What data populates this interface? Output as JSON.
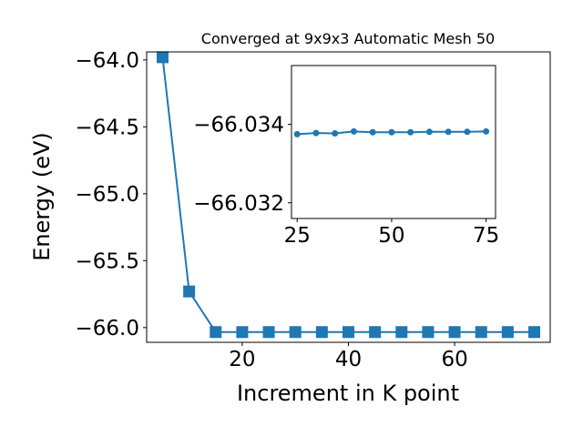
{
  "chart_data": [
    {
      "type": "line",
      "title": "Converged at 9x9x3 Automatic Mesh 50",
      "xlabel": "Increment in K point",
      "ylabel": "Energy (eV)",
      "xlim": [
        2.0,
        78.0
      ],
      "ylim": [
        -66.11,
        -63.94
      ],
      "xticks": [
        20,
        40,
        60
      ],
      "xtick_labels": [
        "20",
        "40",
        "60"
      ],
      "yticks": [
        -64.0,
        -64.5,
        -65.0,
        -65.5,
        -66.0
      ],
      "ytick_labels": [
        "−64.0",
        "−64.5",
        "−65.0",
        "−65.5",
        "−66.0"
      ],
      "marker": "square",
      "color": "#1f77b4",
      "grid": false,
      "x": [
        5,
        10,
        15,
        20,
        25,
        30,
        35,
        40,
        45,
        50,
        55,
        60,
        65,
        70,
        75
      ],
      "y": [
        -63.98,
        -65.73,
        -66.0334,
        -66.0335,
        -66.0334,
        -66.0334,
        -66.0334,
        -66.0334,
        -66.0334,
        -66.0334,
        -66.0334,
        -66.0334,
        -66.0334,
        -66.0334,
        -66.0334
      ]
    },
    {
      "type": "line",
      "title": "",
      "xlabel": "",
      "ylabel": "",
      "xlim": [
        23.5,
        77.5
      ],
      "ylim": [
        -66.0316,
        -66.0355
      ],
      "xticks": [
        25,
        50,
        75
      ],
      "xtick_labels": [
        "25",
        "50",
        "75"
      ],
      "yticks": [
        -66.034,
        -66.032
      ],
      "ytick_labels": [
        "−66.034",
        "−66.032"
      ],
      "marker": "circle",
      "color": "#1f77b4",
      "grid": false,
      "x": [
        25,
        30,
        35,
        40,
        45,
        50,
        55,
        60,
        65,
        70,
        75
      ],
      "y": [
        -66.03375,
        -66.03378,
        -66.03377,
        -66.03382,
        -66.0338,
        -66.0338,
        -66.0338,
        -66.03381,
        -66.03381,
        -66.03381,
        -66.03382
      ]
    }
  ]
}
